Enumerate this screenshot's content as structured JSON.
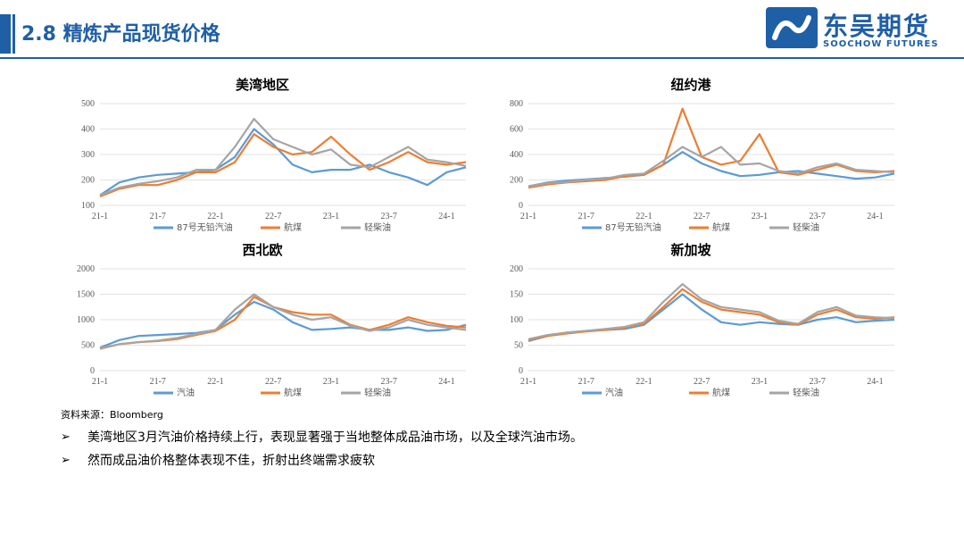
{
  "header": {
    "title": "2.8 精炼产品现货价格"
  },
  "logo": {
    "name": "东吴期货",
    "english": "SOOCHOW FUTURES"
  },
  "colors": {
    "gasoline": "#5b9bd5",
    "jet": "#ed7d31",
    "diesel": "#a5a5a5",
    "brand": "#1f5fa6"
  },
  "x_ticks": [
    "21-1",
    "21-7",
    "22-1",
    "22-7",
    "23-1",
    "23-7",
    "24-1"
  ],
  "source": "资料来源：Bloomberg",
  "bullets": [
    "美湾地区3月汽油价格持续上行，表现显著强于当地整体成品油市场，以及全球汽油市场。",
    "然而成品油价格整体表现不佳，折射出终端需求疲软"
  ],
  "chart_data": [
    {
      "type": "line",
      "title": "美湾地区",
      "xlabel": "",
      "ylabel": "",
      "ylim": [
        100,
        500
      ],
      "yticks": [
        100,
        200,
        300,
        400,
        500
      ],
      "x": [
        "21-1",
        "21-3",
        "21-5",
        "21-7",
        "21-9",
        "21-11",
        "22-1",
        "22-3",
        "22-5",
        "22-7",
        "22-9",
        "22-11",
        "23-1",
        "23-3",
        "23-5",
        "23-7",
        "23-9",
        "23-11",
        "24-1",
        "24-3"
      ],
      "series": [
        {
          "name": "87号无铅汽油",
          "values": [
            140,
            190,
            210,
            220,
            225,
            230,
            240,
            290,
            400,
            340,
            260,
            230,
            240,
            240,
            260,
            230,
            210,
            180,
            230,
            250
          ]
        },
        {
          "name": "航煤",
          "values": [
            135,
            165,
            180,
            180,
            200,
            230,
            230,
            270,
            380,
            330,
            300,
            310,
            370,
            300,
            240,
            270,
            310,
            270,
            260,
            270
          ]
        },
        {
          "name": "轻柴油",
          "values": [
            140,
            170,
            185,
            195,
            210,
            240,
            240,
            330,
            440,
            360,
            330,
            300,
            320,
            260,
            250,
            290,
            330,
            280,
            270,
            255
          ]
        }
      ]
    },
    {
      "type": "line",
      "title": "纽约港",
      "xlabel": "",
      "ylabel": "",
      "ylim": [
        0,
        800
      ],
      "yticks": [
        0,
        200,
        400,
        600,
        800
      ],
      "x": [
        "21-1",
        "21-3",
        "21-5",
        "21-7",
        "21-9",
        "21-11",
        "22-1",
        "22-3",
        "22-5",
        "22-7",
        "22-9",
        "22-11",
        "23-1",
        "23-3",
        "23-5",
        "23-7",
        "23-9",
        "23-11",
        "24-1",
        "24-3"
      ],
      "series": [
        {
          "name": "87号无铅汽油",
          "values": [
            150,
            180,
            195,
            205,
            215,
            225,
            240,
            320,
            420,
            330,
            270,
            230,
            240,
            260,
            270,
            250,
            230,
            210,
            220,
            250
          ]
        },
        {
          "name": "航煤",
          "values": [
            140,
            165,
            180,
            190,
            200,
            230,
            240,
            320,
            760,
            380,
            320,
            350,
            560,
            260,
            240,
            280,
            320,
            270,
            260,
            270
          ]
        },
        {
          "name": "轻柴油",
          "values": [
            150,
            175,
            185,
            200,
            210,
            240,
            250,
            350,
            460,
            380,
            460,
            320,
            330,
            270,
            250,
            300,
            330,
            280,
            270,
            260
          ]
        }
      ]
    },
    {
      "type": "line",
      "title": "西北欧",
      "xlabel": "",
      "ylabel": "",
      "ylim": [
        0,
        2000
      ],
      "yticks": [
        0,
        500,
        1000,
        1500,
        2000
      ],
      "x": [
        "21-1",
        "21-3",
        "21-5",
        "21-7",
        "21-9",
        "21-11",
        "22-1",
        "22-3",
        "22-5",
        "22-7",
        "22-9",
        "22-11",
        "23-1",
        "23-3",
        "23-5",
        "23-7",
        "23-9",
        "23-11",
        "24-1",
        "24-3"
      ],
      "series": [
        {
          "name": "汽油",
          "values": [
            450,
            600,
            680,
            700,
            720,
            740,
            800,
            1100,
            1350,
            1200,
            950,
            800,
            820,
            850,
            800,
            800,
            850,
            780,
            800,
            900
          ]
        },
        {
          "name": "航煤",
          "values": [
            430,
            520,
            560,
            580,
            620,
            700,
            780,
            1000,
            1450,
            1250,
            1150,
            1100,
            1100,
            900,
            800,
            900,
            1050,
            950,
            880,
            850
          ]
        },
        {
          "name": "轻柴油",
          "values": [
            440,
            520,
            560,
            590,
            640,
            720,
            800,
            1200,
            1500,
            1250,
            1100,
            1000,
            1050,
            880,
            780,
            850,
            1000,
            900,
            850,
            800
          ]
        }
      ]
    },
    {
      "type": "line",
      "title": "新加坡",
      "xlabel": "",
      "ylabel": "",
      "ylim": [
        0,
        200
      ],
      "yticks": [
        0,
        50,
        100,
        150,
        200
      ],
      "x": [
        "21-1",
        "21-3",
        "21-5",
        "21-7",
        "21-9",
        "21-11",
        "22-1",
        "22-3",
        "22-5",
        "22-7",
        "22-9",
        "22-11",
        "23-1",
        "23-3",
        "23-5",
        "23-7",
        "23-9",
        "23-11",
        "24-1",
        "24-3"
      ],
      "series": [
        {
          "name": "汽油",
          "values": [
            58,
            68,
            75,
            78,
            80,
            82,
            90,
            120,
            150,
            120,
            95,
            90,
            95,
            92,
            90,
            100,
            105,
            95,
            98,
            100
          ]
        },
        {
          "name": "航煤",
          "values": [
            60,
            68,
            73,
            77,
            80,
            84,
            92,
            125,
            160,
            135,
            120,
            115,
            110,
            95,
            90,
            110,
            120,
            105,
            102,
            105
          ]
        },
        {
          "name": "轻柴油",
          "values": [
            62,
            70,
            75,
            78,
            82,
            86,
            95,
            135,
            170,
            140,
            125,
            120,
            115,
            98,
            92,
            115,
            125,
            108,
            105,
            103
          ]
        }
      ]
    }
  ]
}
